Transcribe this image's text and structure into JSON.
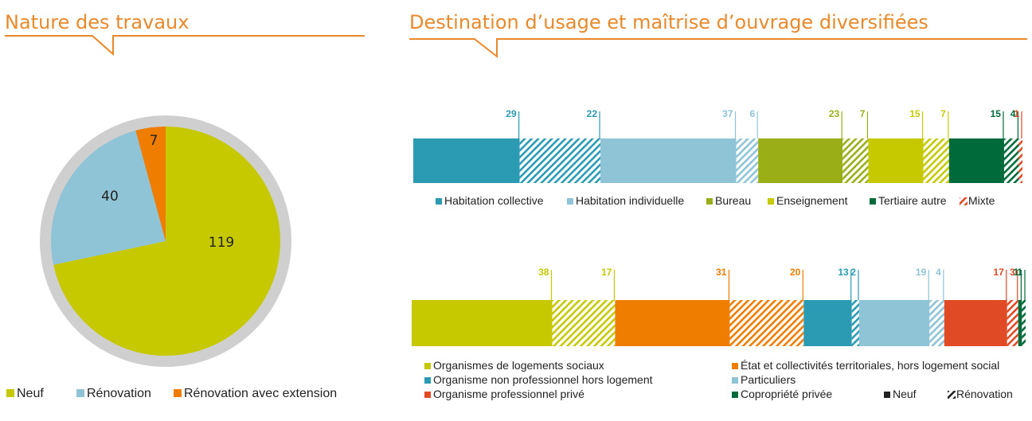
{
  "left_title": "Nature des travaux",
  "right_title": "Destination d’usage et maîtrise d’ouvrage diversifiées",
  "colors": {
    "accent": "#e8892b",
    "hatch_bg": "#ffffff"
  },
  "chart_data": [
    {
      "type": "pie",
      "slices": [
        {
          "label": "Neuf",
          "value": 119,
          "color": "#c6c900"
        },
        {
          "label": "Rénovation",
          "value": 40,
          "color": "#8fc3d6"
        },
        {
          "label": "Rénovation avec extension",
          "value": 7,
          "color": "#ee7d00"
        }
      ]
    },
    {
      "type": "bar",
      "orientation": "stacked-horizontal-100",
      "segments": [
        {
          "category": "Habitation collective",
          "kind": "Neuf",
          "value": 29,
          "color": "#2b9ab3"
        },
        {
          "category": "Habitation collective",
          "kind": "Rénovation",
          "value": 22,
          "color": "#2b9ab3"
        },
        {
          "category": "Habitation individuelle",
          "kind": "Neuf",
          "value": 37,
          "color": "#8fc3d6"
        },
        {
          "category": "Habitation individuelle",
          "kind": "Rénovation",
          "value": 6,
          "color": "#8fc3d6"
        },
        {
          "category": "Bureau",
          "kind": "Neuf",
          "value": 23,
          "color": "#9aae18"
        },
        {
          "category": "Bureau",
          "kind": "Rénovation",
          "value": 7,
          "color": "#9aae18"
        },
        {
          "category": "Enseignement",
          "kind": "Neuf",
          "value": 15,
          "color": "#c6c900"
        },
        {
          "category": "Enseignement",
          "kind": "Rénovation",
          "value": 7,
          "color": "#c6c900"
        },
        {
          "category": "Tertiaire autre",
          "kind": "Neuf",
          "value": 15,
          "color": "#006a3b"
        },
        {
          "category": "Tertiaire autre",
          "kind": "Rénovation",
          "value": 4,
          "color": "#006a3b"
        },
        {
          "category": "Mixte",
          "kind": "Rénovation",
          "value": 1,
          "color": "#e04a25"
        }
      ],
      "legend": [
        {
          "label": "Habitation collective",
          "color": "#2b9ab3",
          "hatch": false
        },
        {
          "label": "Habitation individuelle",
          "color": "#8fc3d6",
          "hatch": false
        },
        {
          "label": "Bureau",
          "color": "#9aae18",
          "hatch": false
        },
        {
          "label": "Enseignement",
          "color": "#c6c900",
          "hatch": false
        },
        {
          "label": "Tertiaire autre",
          "color": "#006a3b",
          "hatch": false
        },
        {
          "label": "Mixte",
          "color": "#e04a25",
          "hatch": true
        }
      ]
    },
    {
      "type": "bar",
      "orientation": "stacked-horizontal-100",
      "segments": [
        {
          "category": "Organismes de logements sociaux",
          "kind": "Neuf",
          "value": 38,
          "color": "#c6c900"
        },
        {
          "category": "Organismes de logements sociaux",
          "kind": "Rénovation",
          "value": 17,
          "color": "#c6c900"
        },
        {
          "category": "État et collectivités territoriales, hors logement social",
          "kind": "Neuf",
          "value": 31,
          "color": "#ee7d00"
        },
        {
          "category": "État et collectivités territoriales, hors logement social",
          "kind": "Rénovation",
          "value": 20,
          "color": "#ee7d00"
        },
        {
          "category": "Organisme non professionnel hors logement",
          "kind": "Neuf",
          "value": 13,
          "color": "#2b9ab3"
        },
        {
          "category": "Organisme non professionnel hors logement",
          "kind": "Rénovation",
          "value": 2,
          "color": "#2b9ab3"
        },
        {
          "category": "Particuliers",
          "kind": "Neuf",
          "value": 19,
          "color": "#8fc3d6"
        },
        {
          "category": "Particuliers",
          "kind": "Rénovation",
          "value": 4,
          "color": "#8fc3d6"
        },
        {
          "category": "Organisme professionnel privé",
          "kind": "Neuf",
          "value": 17,
          "color": "#e04a25"
        },
        {
          "category": "Organisme professionnel privé",
          "kind": "Rénovation",
          "value": 3,
          "color": "#e04a25"
        },
        {
          "category": "Copropriété privée",
          "kind": "Neuf",
          "value": 1,
          "color": "#006a3b"
        },
        {
          "category": "Copropriété privée",
          "kind": "Rénovation",
          "value": 1,
          "color": "#006a3b"
        }
      ],
      "legend": [
        {
          "label": "Organismes de logements sociaux",
          "color": "#c6c900",
          "hatch": false
        },
        {
          "label": "État et collectivités territoriales, hors logement social",
          "color": "#ee7d00",
          "hatch": false
        },
        {
          "label": "Organisme non professionnel hors logement",
          "color": "#2b9ab3",
          "hatch": false
        },
        {
          "label": "Particuliers",
          "color": "#8fc3d6",
          "hatch": false
        },
        {
          "label": "Organisme professionnel privé",
          "color": "#e04a25",
          "hatch": false
        },
        {
          "label": "Copropriété privée",
          "color": "#006a3b",
          "hatch": false
        },
        {
          "label": "Neuf",
          "color": "#222222",
          "hatch": false
        },
        {
          "label": "Rénovation",
          "color": "#222222",
          "hatch": true
        }
      ]
    }
  ]
}
